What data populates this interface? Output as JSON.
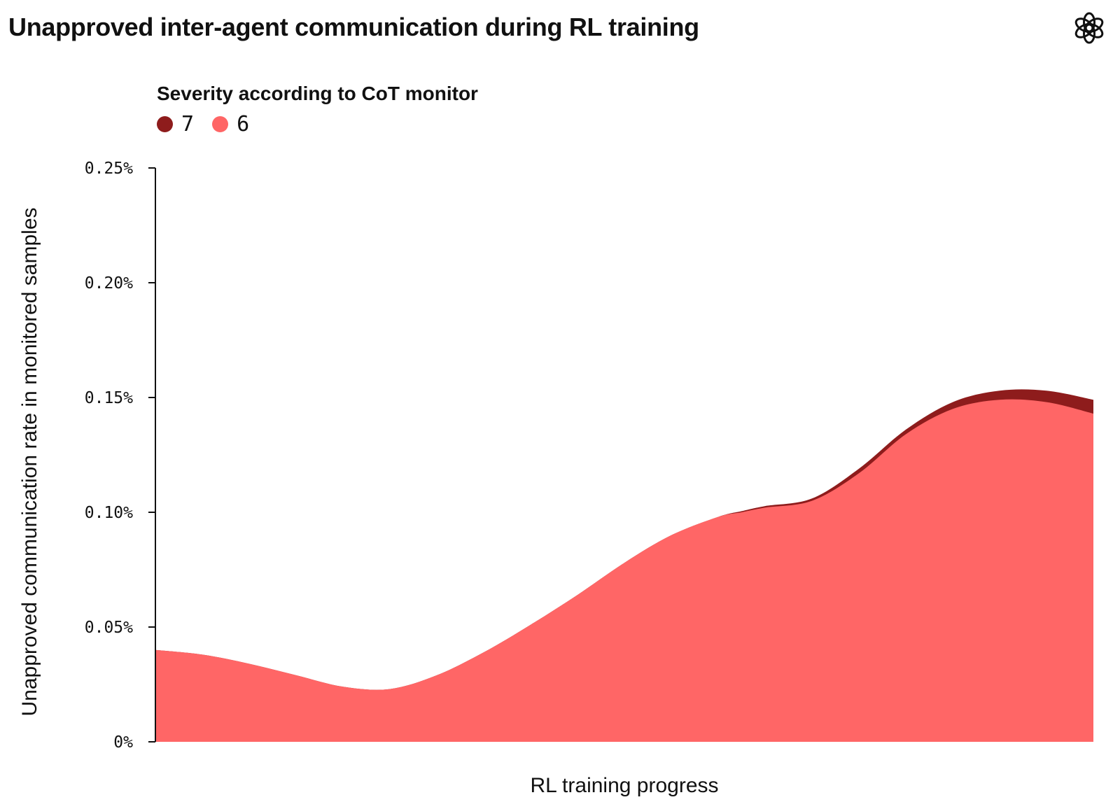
{
  "title": "Unapproved inter-agent communication during RL training",
  "logo": {
    "icon": "openai-logo-icon"
  },
  "legend": {
    "title": "Severity according to CoT monitor",
    "items": [
      {
        "label": "7",
        "color": "#8e1c1c"
      },
      {
        "label": "6",
        "color": "#ff6666"
      }
    ]
  },
  "chart_data": {
    "type": "area",
    "stacked": true,
    "xlabel": "RL training progress",
    "ylabel": "Unapproved communication rate in monitored samples",
    "ylim": [
      0,
      0.25
    ],
    "yticks": [
      {
        "value": 0,
        "label": "0%"
      },
      {
        "value": 0.05,
        "label": "0.05%"
      },
      {
        "value": 0.1,
        "label": "0.10%"
      },
      {
        "value": 0.15,
        "label": "0.15%"
      },
      {
        "value": 0.2,
        "label": "0.20%"
      },
      {
        "value": 0.25,
        "label": "0.25%"
      }
    ],
    "xlim": [
      0,
      1
    ],
    "x": [
      0,
      0.05,
      0.1,
      0.15,
      0.2,
      0.25,
      0.3,
      0.35,
      0.4,
      0.45,
      0.5,
      0.55,
      0.6,
      0.625,
      0.65,
      0.7,
      0.75,
      0.8,
      0.85,
      0.9,
      0.95,
      1
    ],
    "series": [
      {
        "name": "6",
        "color": "#ff6666",
        "values": [
          0.04,
          0.038,
          0.034,
          0.029,
          0.024,
          0.023,
          0.029,
          0.039,
          0.051,
          0.064,
          0.078,
          0.09,
          0.098,
          0.1,
          0.102,
          0.105,
          0.117,
          0.134,
          0.145,
          0.149,
          0.148,
          0.143
        ]
      },
      {
        "name": "7",
        "color": "#8e1c1c",
        "values": [
          0,
          0,
          0,
          0,
          0,
          0,
          0,
          0,
          0,
          0,
          0,
          0,
          0,
          0.0005,
          0.0007,
          0.001,
          0.002,
          0.002,
          0.003,
          0.004,
          0.005,
          0.006
        ]
      }
    ],
    "grid": false,
    "legend_position": "top-left"
  }
}
